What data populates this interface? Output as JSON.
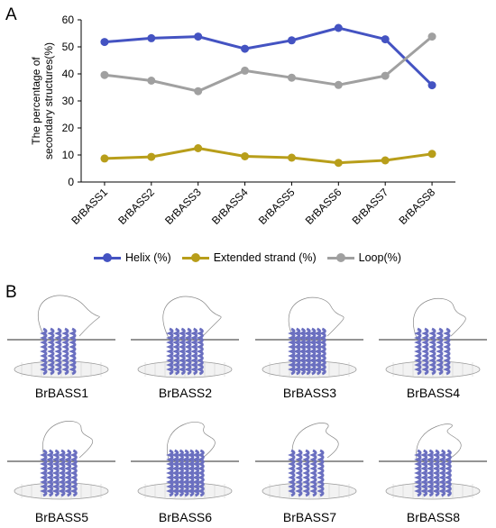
{
  "panel_a_letter": "A",
  "panel_b_letter": "B",
  "colors": {
    "helix": "#4453c2",
    "extended": "#b89e1a",
    "loop": "#a0a0a0",
    "ribbon": "#6a6fc0",
    "membrane": "#555555"
  },
  "chart_data": {
    "type": "line",
    "ylabel": "The percentage of secondary structures(%)",
    "ylabel_lines": [
      "The percentage of",
      "secondary structures(%)"
    ],
    "xlabel": "",
    "ylim": [
      0,
      60
    ],
    "yticks": [
      0,
      10,
      20,
      30,
      40,
      50,
      60
    ],
    "grid": false,
    "legend_position": "bottom",
    "categories": [
      "BrBASS1",
      "BrBASS2",
      "BrBASS3",
      "BrBASS4",
      "BrBASS5",
      "BrBASS6",
      "BrBASS7",
      "BrBASS8"
    ],
    "series": [
      {
        "name": "Helix (%)",
        "color": "#4453c2",
        "values": [
          51.8,
          53.2,
          53.8,
          49.3,
          52.4,
          57.0,
          52.8,
          35.8
        ]
      },
      {
        "name": "Extended strand (%)",
        "color": "#b89e1a",
        "values": [
          8.7,
          9.3,
          12.5,
          9.5,
          9.0,
          7.1,
          8.0,
          10.4
        ]
      },
      {
        "name": "Loop(%)",
        "color": "#a0a0a0",
        "values": [
          39.6,
          37.5,
          33.6,
          41.2,
          38.6,
          35.9,
          39.3,
          53.8
        ]
      }
    ]
  },
  "structures": [
    {
      "label": "BrBASS1"
    },
    {
      "label": "BrBASS2"
    },
    {
      "label": "BrBASS3"
    },
    {
      "label": "BrBASS4"
    },
    {
      "label": "BrBASS5"
    },
    {
      "label": "BrBASS6"
    },
    {
      "label": "BrBASS7"
    },
    {
      "label": "BrBASS8"
    }
  ]
}
